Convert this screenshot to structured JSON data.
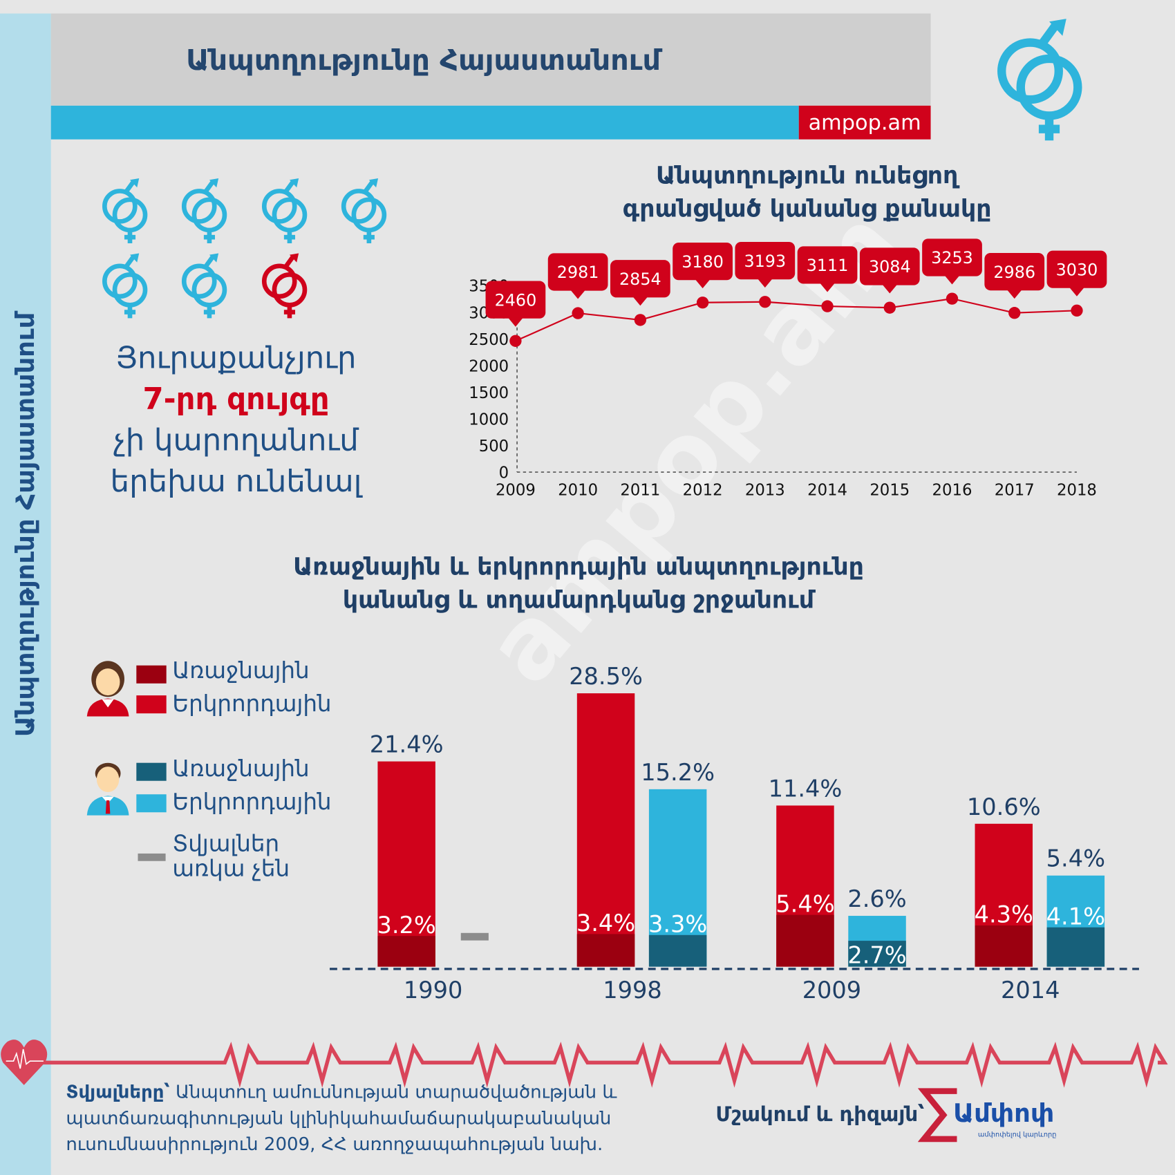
{
  "header": {
    "title": "Անպտղությունը Հայաստանում",
    "site": "ampop.am",
    "sidebar_title": "Անպտղությունը Հայաստանում",
    "watermark": "ampop.am"
  },
  "colors": {
    "navy": "#1f3f66",
    "blue": "#2eb4dc",
    "red": "#d0021b",
    "dark_red": "#9b0010",
    "teal": "#17607a",
    "gray": "#8c8c8c",
    "sidebar": "#b3ddeb"
  },
  "icons": {
    "couple": "male-female-symbol-icon",
    "woman": "woman-avatar-icon",
    "man": "man-avatar-icon",
    "heart": "heartbeat-heart-icon"
  },
  "left_panel": {
    "couples_total": 7,
    "highlighted_index": 7,
    "line1": "Յուրաքանչյուր",
    "line2": "7-րդ զույգը",
    "line3": "չի կարողանում",
    "line4": "երեխա ունենալ"
  },
  "legend": {
    "female_primary": "Առաջնային",
    "female_secondary": "Երկրորդային",
    "male_primary": "Առաջնային",
    "male_secondary": "Երկրորդային",
    "no_data_1": "Տվյալներ",
    "no_data_2": "առկա չեն"
  },
  "chart_data": [
    {
      "type": "line",
      "title": [
        "Անպտղություն ունեցող",
        "գրանցված կանանց քանակը"
      ],
      "x": [
        2009,
        2010,
        2011,
        2012,
        2013,
        2014,
        2015,
        2016,
        2017,
        2018
      ],
      "values": [
        2460,
        2981,
        2854,
        3180,
        3193,
        3111,
        3084,
        3253,
        2986,
        3030
      ],
      "ylim": [
        0,
        3500
      ],
      "yticks": [
        0,
        500,
        1000,
        1500,
        2000,
        2500,
        3000,
        3500
      ],
      "color": "#d0021b",
      "grid": false
    },
    {
      "type": "bar",
      "title": [
        "Առաջնային և երկրորդային անպտղությունը",
        "կանանց և տղամարդկանց շրջանում"
      ],
      "categories": [
        "1990",
        "1998",
        "2009",
        "2014"
      ],
      "series": [
        {
          "name": "Կանայք Առաջնային",
          "values": [
            3.2,
            3.4,
            5.4,
            4.3
          ],
          "labels": [
            "3.2%",
            "3.4%",
            "5.4%",
            "4.3%"
          ]
        },
        {
          "name": "Կանայք Երկրորդային",
          "values": [
            21.4,
            28.5,
            11.4,
            10.6
          ],
          "labels": [
            "21.4%",
            "28.5%",
            "11.4%",
            "10.6%"
          ]
        },
        {
          "name": "Տղամարդիկ Առաջնային",
          "values": [
            null,
            3.3,
            2.7,
            4.1
          ],
          "labels": [
            "",
            "3.3%",
            "2.7%",
            "4.1%"
          ]
        },
        {
          "name": "Տղամարդիկ Երկրորդային",
          "values": [
            null,
            15.2,
            2.6,
            5.4
          ],
          "labels": [
            "",
            "15.2%",
            "2.6%",
            "5.4%"
          ]
        }
      ],
      "unit": "%"
    }
  ],
  "footer": {
    "source_label": "Տվյալները՝",
    "source_text": " Անպտուղ ամուսնության տարածվածության և պատճառագիտության կլինիկահամաճարակաբանական ուսումնասիրություն 2009, ՀՀ առողջապահության նախ.",
    "credit": "Մշակում և դիզայն՝",
    "logo": "Ամփոփ",
    "logo_tagline": "ամփոփելով կարևորը"
  }
}
